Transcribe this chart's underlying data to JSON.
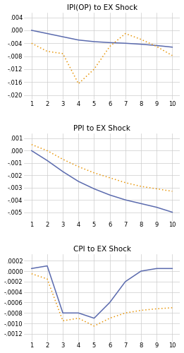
{
  "panel1": {
    "title": "IPI(OP) to EX Shock",
    "solid": [
      0.0,
      -0.001,
      -0.002,
      -0.003,
      -0.0035,
      -0.0038,
      -0.004,
      -0.0043,
      -0.0047,
      -0.0052
    ],
    "dotted": [
      -0.004,
      -0.0065,
      -0.0072,
      -0.0165,
      -0.012,
      -0.005,
      -0.001,
      -0.0028,
      -0.005,
      -0.0078
    ],
    "ylim": [
      -0.0215,
      0.0055
    ],
    "yticks": [
      0.004,
      0.0,
      -0.004,
      -0.008,
      -0.012,
      -0.016,
      -0.02
    ],
    "yticklabels": [
      ".004",
      ".000",
      "-.004",
      "-.008",
      "-.012",
      "-.016",
      "-.020"
    ]
  },
  "panel2": {
    "title": "PPI to EX Shock",
    "solid": [
      0.0,
      -0.0008,
      -0.0017,
      -0.0025,
      -0.0031,
      -0.0036,
      -0.004,
      -0.0043,
      -0.0046,
      -0.005
    ],
    "dotted": [
      0.0005,
      0.0,
      -0.0007,
      -0.0013,
      -0.0018,
      -0.0022,
      -0.0026,
      -0.0029,
      -0.0031,
      -0.0033
    ],
    "ylim": [
      -0.0057,
      0.0014
    ],
    "yticks": [
      0.001,
      0.0,
      -0.001,
      -0.002,
      -0.003,
      -0.004,
      -0.005
    ],
    "yticklabels": [
      ".001",
      ".000",
      "-.001",
      "-.002",
      "-.003",
      "-.004",
      "-.005"
    ]
  },
  "panel3": {
    "title": "CPI to EX Shock",
    "solid": [
      5e-05,
      0.0001,
      -0.0008,
      -0.0008,
      -0.0009,
      -0.0006,
      -0.0002,
      0.0,
      5e-05,
      5e-05
    ],
    "dotted": [
      -5e-05,
      -0.00015,
      -0.00095,
      -0.0009,
      -0.00105,
      -0.0009,
      -0.0008,
      -0.00075,
      -0.00072,
      -0.0007
    ],
    "ylim": [
      -0.00135,
      0.00032
    ],
    "yticks": [
      0.0002,
      0.0,
      -0.0002,
      -0.0004,
      -0.0006,
      -0.0008,
      -0.001,
      -0.0012
    ],
    "yticklabels": [
      ".0002",
      ".0000",
      "-.0002",
      "-.0004",
      "-.0006",
      "-.0008",
      "-.0010",
      "-.0012"
    ]
  },
  "solid_color": "#5B6BAE",
  "dotted_color": "#E8960A",
  "bg_color": "#FFFFFF",
  "grid_color": "#CCCCCC",
  "title_fontsize": 7.5,
  "tick_fontsize": 6.0,
  "line_width": 1.1
}
